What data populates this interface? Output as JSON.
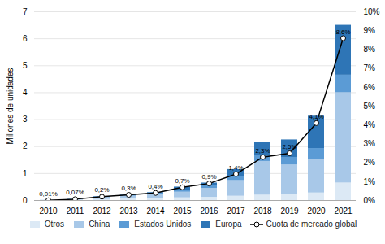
{
  "chart_data": {
    "type": "bar",
    "stacked": true,
    "categories": [
      "2010",
      "2011",
      "2012",
      "2013",
      "2014",
      "2015",
      "2016",
      "2017",
      "2018",
      "2019",
      "2020",
      "2021"
    ],
    "series": [
      {
        "name": "Otros",
        "type": "bar",
        "color": "#dce9f5",
        "values": [
          0.005,
          0.015,
          0.04,
          0.06,
          0.08,
          0.1,
          0.12,
          0.16,
          0.2,
          0.22,
          0.28,
          0.65
        ]
      },
      {
        "name": "China",
        "type": "bar",
        "color": "#a8c8e8",
        "values": [
          0.003,
          0.02,
          0.07,
          0.1,
          0.14,
          0.21,
          0.33,
          0.58,
          1.25,
          1.1,
          1.25,
          3.35
        ]
      },
      {
        "name": "Estados Unidos",
        "type": "bar",
        "color": "#5b9bd5",
        "values": [
          0.001,
          0.01,
          0.025,
          0.04,
          0.06,
          0.08,
          0.1,
          0.15,
          0.22,
          0.28,
          0.4,
          0.65
        ]
      },
      {
        "name": "Europa",
        "type": "bar",
        "color": "#2e75b6",
        "values": [
          0.001,
          0.005,
          0.015,
          0.02,
          0.02,
          0.11,
          0.1,
          0.26,
          0.48,
          0.65,
          1.2,
          1.85
        ]
      },
      {
        "name": "Cuota de mercado global",
        "type": "line",
        "axis": "y2",
        "color": "#000000",
        "marker": "circle",
        "data_labels": true,
        "values": [
          0.01,
          0.07,
          0.2,
          0.3,
          0.4,
          0.7,
          0.9,
          1.4,
          2.3,
          2.5,
          4.1,
          8.6
        ],
        "value_labels": [
          "0,01%",
          "0,07%",
          "0,2%",
          "0,3%",
          "0,4%",
          "0,7%",
          "0,9%",
          "1,4%",
          "2,3%",
          "2,5%",
          "4,1%",
          "8,6%"
        ]
      }
    ],
    "ylabel": "Millones de unidades",
    "ylim": [
      0,
      7
    ],
    "yticks": [
      0,
      1,
      2,
      3,
      4,
      5,
      6,
      7
    ],
    "y2lim": [
      0,
      10
    ],
    "y2ticks": [
      {
        "value": 0,
        "label": "0%"
      },
      {
        "value": 1,
        "label": "1%"
      },
      {
        "value": 2,
        "label": "2%"
      },
      {
        "value": 3,
        "label": "3%"
      },
      {
        "value": 4,
        "label": "4%"
      },
      {
        "value": 5,
        "label": "5%"
      },
      {
        "value": 6,
        "label": "6%"
      },
      {
        "value": 7,
        "label": "7%"
      },
      {
        "value": 8,
        "label": "8%"
      },
      {
        "value": 9,
        "label": "9%"
      },
      {
        "value": 10,
        "label": "10%"
      }
    ],
    "grid": true,
    "legend": "bottom"
  }
}
